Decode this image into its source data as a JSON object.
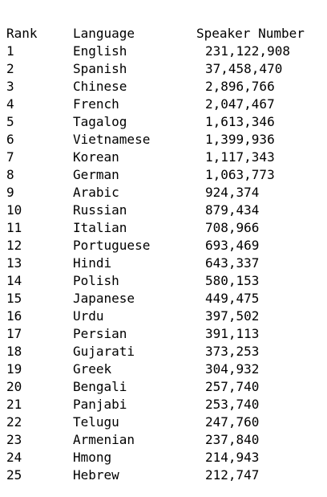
{
  "columns": {
    "rank": "Rank",
    "language": "Language",
    "speakers": "Speaker Number"
  },
  "rows": [
    {
      "rank": "1",
      "language": "English",
      "speakers": "231,122,908"
    },
    {
      "rank": "2",
      "language": "Spanish",
      "speakers": "37,458,470"
    },
    {
      "rank": "3",
      "language": "Chinese",
      "speakers": "2,896,766"
    },
    {
      "rank": "4",
      "language": "French",
      "speakers": "2,047,467"
    },
    {
      "rank": "5",
      "language": "Tagalog",
      "speakers": "1,613,346"
    },
    {
      "rank": "6",
      "language": "Vietnamese",
      "speakers": "1,399,936"
    },
    {
      "rank": "7",
      "language": "Korean",
      "speakers": "1,117,343"
    },
    {
      "rank": "8",
      "language": "German",
      "speakers": "1,063,773"
    },
    {
      "rank": "9",
      "language": "Arabic",
      "speakers": "924,374"
    },
    {
      "rank": "10",
      "language": "Russian",
      "speakers": "879,434"
    },
    {
      "rank": "11",
      "language": "Italian",
      "speakers": "708,966"
    },
    {
      "rank": "12",
      "language": "Portuguese",
      "speakers": "693,469"
    },
    {
      "rank": "13",
      "language": "Hindi",
      "speakers": "643,337"
    },
    {
      "rank": "14",
      "language": "Polish",
      "speakers": "580,153"
    },
    {
      "rank": "15",
      "language": "Japanese",
      "speakers": "449,475"
    },
    {
      "rank": "16",
      "language": "Urdu",
      "speakers": "397,502"
    },
    {
      "rank": "17",
      "language": "Persian",
      "speakers": "391,113"
    },
    {
      "rank": "18",
      "language": "Gujarati",
      "speakers": "373,253"
    },
    {
      "rank": "19",
      "language": "Greek",
      "speakers": "304,932"
    },
    {
      "rank": "20",
      "language": "Bengali",
      "speakers": "257,740"
    },
    {
      "rank": "21",
      "language": "Panjabi",
      "speakers": "253,740"
    },
    {
      "rank": "22",
      "language": "Telugu",
      "speakers": "247,760"
    },
    {
      "rank": "23",
      "language": "Armenian",
      "speakers": "237,840"
    },
    {
      "rank": "24",
      "language": "Hmong",
      "speakers": "214,943"
    },
    {
      "rank": "25",
      "language": "Hebrew",
      "speakers": "212,747"
    }
  ]
}
